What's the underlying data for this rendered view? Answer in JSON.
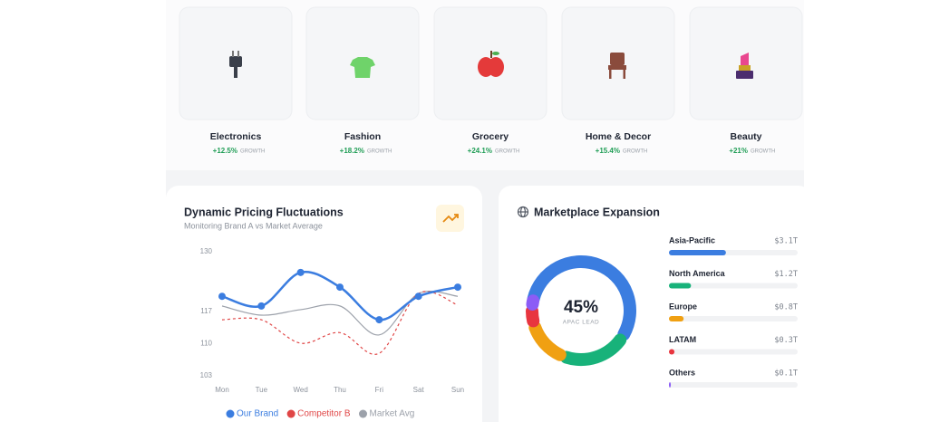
{
  "categories": [
    {
      "name": "Electronics",
      "growth": "+12.5%",
      "growth_label": "GROWTH"
    },
    {
      "name": "Fashion",
      "growth": "+18.2%",
      "growth_label": "GROWTH"
    },
    {
      "name": "Grocery",
      "growth": "+24.1%",
      "growth_label": "GROWTH"
    },
    {
      "name": "Home & Decor",
      "growth": "+15.4%",
      "growth_label": "GROWTH"
    },
    {
      "name": "Beauty",
      "growth": "+21%",
      "growth_label": "GROWTH"
    }
  ],
  "pricing_card": {
    "title": "Dynamic Pricing Fluctuations",
    "subtitle": "Monitoring Brand A vs Market Average",
    "chart": {
      "type": "line",
      "categories": [
        "Mon",
        "Tue",
        "Wed",
        "Thu",
        "Fri",
        "Sat",
        "Sun"
      ],
      "series": [
        {
          "name": "Our Brand",
          "color": "#3b7de0",
          "values": [
            120.3,
            118.2,
            125.5,
            122.3,
            115.2,
            120.3,
            122.3
          ]
        },
        {
          "name": "Competitor B",
          "color": "#e04646",
          "values": [
            115.2,
            115.2,
            110.1,
            112.4,
            107.9,
            120.9,
            118.4
          ]
        },
        {
          "name": "Market Avg",
          "color": "#9ca1aa",
          "values": [
            118.2,
            116.2,
            117.4,
            118.2,
            111.9,
            120.9,
            120.3
          ]
        }
      ],
      "ylim": [
        103,
        130
      ],
      "yticks": [
        103,
        110,
        117,
        130
      ]
    }
  },
  "expansion_card": {
    "title": "Marketplace Expansion",
    "center_value": "45%",
    "center_label": "APAC LEAD",
    "xlim": [
      0,
      7
    ],
    "regions": [
      {
        "name": "Asia-Pacific",
        "value": 3.1,
        "value_label": "$3.1T",
        "color": "#3b7de0"
      },
      {
        "name": "North America",
        "value": 1.2,
        "value_label": "$1.2T",
        "color": "#18b27a"
      },
      {
        "name": "Europe",
        "value": 0.8,
        "value_label": "$0.8T",
        "color": "#f0a012"
      },
      {
        "name": "LATAM",
        "value": 0.3,
        "value_label": "$0.3T",
        "color": "#e8353f"
      },
      {
        "name": "Others",
        "value": 0.1,
        "value_label": "$0.1T",
        "color": "#8b5cf6"
      }
    ]
  }
}
